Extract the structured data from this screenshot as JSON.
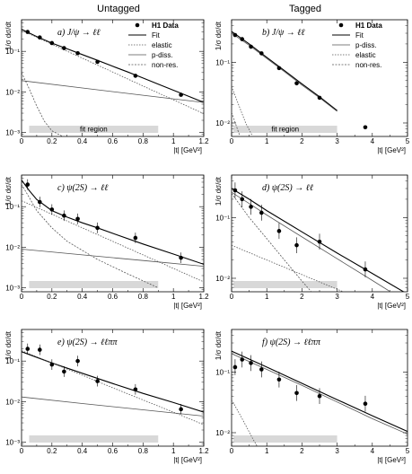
{
  "headers": {
    "left": "Untagged",
    "right": "Tagged"
  },
  "legend": {
    "untagged": [
      "H1 Data",
      "Fit",
      "elastic",
      "p-diss.",
      "non-res."
    ],
    "tagged": [
      "H1 Data",
      "Fit",
      "p-diss.",
      "elastic",
      "non-res."
    ]
  },
  "chart_data": [
    {
      "type": "scatter",
      "title": "a) J/ψ → ℓℓ",
      "column": "Untagged",
      "xlabel": "|t| [GeV²]",
      "ylabel": "1/σ dσ/dt",
      "xlim": [
        0,
        1.2
      ],
      "ylog": true,
      "xticks": [
        "0",
        "0.2",
        "0.4",
        "0.6",
        "0.8",
        "1",
        "1.2"
      ],
      "yticks": [
        "10⁻³",
        "10⁻²",
        "10⁻¹"
      ],
      "annotation": "fit region",
      "fit_region": [
        0.05,
        0.9
      ],
      "series": [
        {
          "name": "H1 Data",
          "x": [
            0.04,
            0.12,
            0.2,
            0.28,
            0.37,
            0.5,
            0.75,
            1.05
          ],
          "y": [
            0.3,
            0.22,
            0.16,
            0.12,
            0.09,
            0.055,
            0.025,
            0.0085
          ]
        },
        {
          "name": "Fit",
          "x": [
            0,
            0.1,
            0.2,
            0.3,
            0.4,
            0.5,
            0.6,
            0.7,
            0.8,
            0.9,
            1.0,
            1.1,
            1.2
          ],
          "y": [
            0.35,
            0.23,
            0.16,
            0.115,
            0.083,
            0.06,
            0.043,
            0.031,
            0.022,
            0.0155,
            0.011,
            0.0078,
            0.0055
          ]
        },
        {
          "name": "elastic",
          "x": [
            0,
            0.2,
            0.4,
            0.6,
            0.8,
            1.0,
            1.2
          ],
          "y": [
            0.33,
            0.15,
            0.068,
            0.031,
            0.014,
            0.0064,
            0.0029
          ]
        },
        {
          "name": "p-diss.",
          "x": [
            0,
            0.4,
            0.8,
            1.2
          ],
          "y": [
            0.019,
            0.0125,
            0.0083,
            0.0055
          ]
        },
        {
          "name": "non-res.",
          "x": [
            0,
            0.05,
            0.1,
            0.15,
            0.2,
            0.3
          ],
          "y": [
            0.03,
            0.012,
            0.0045,
            0.0019,
            0.0011,
            0.0007
          ]
        }
      ]
    },
    {
      "type": "scatter",
      "title": "b) J/ψ → ℓℓ",
      "column": "Tagged",
      "xlabel": "|t| [GeV²]",
      "ylabel": "1/σ dσ/dt",
      "xlim": [
        0,
        5
      ],
      "ylog": true,
      "xticks": [
        "0",
        "1",
        "2",
        "3",
        "4",
        "5"
      ],
      "yticks": [
        "10⁻²",
        "10⁻¹"
      ],
      "annotation": "fit region",
      "fit_region": [
        0.05,
        3.0
      ],
      "series": [
        {
          "name": "H1 Data",
          "x": [
            0.1,
            0.3,
            0.55,
            0.85,
            1.35,
            1.85,
            2.5,
            3.8
          ],
          "y": [
            0.28,
            0.24,
            0.18,
            0.14,
            0.08,
            0.045,
            0.026,
            0.0085
          ]
        },
        {
          "name": "Fit",
          "x": [
            0,
            0.5,
            1,
            1.5,
            2,
            2.5,
            3
          ],
          "y": [
            0.32,
            0.2,
            0.12,
            0.073,
            0.044,
            0.027,
            0.016
          ]
        },
        {
          "name": "p-diss.",
          "x": [
            0,
            0.5,
            1,
            1.5,
            2,
            2.5,
            3
          ],
          "y": [
            0.3,
            0.19,
            0.115,
            0.07,
            0.042,
            0.026,
            0.0155
          ]
        },
        {
          "name": "elastic",
          "x": [
            0,
            0.2,
            0.4,
            0.6,
            0.8,
            1.0,
            1.2
          ],
          "y": [
            0.04,
            0.02,
            0.01,
            0.006,
            0.0035,
            0.0022,
            0.0015
          ]
        },
        {
          "name": "non-res.",
          "x": [
            0,
            0.2,
            0.4,
            0.6,
            0.8,
            1.0
          ],
          "y": [
            0.015,
            0.007,
            0.0035,
            0.002,
            0.0013,
            0.0009
          ]
        }
      ]
    },
    {
      "type": "scatter",
      "title": "c) ψ(2S) → ℓℓ",
      "column": "Untagged",
      "xlabel": "|t| [GeV²]",
      "ylabel": "1/σ dσ/dt",
      "xlim": [
        0,
        1.2
      ],
      "ylog": true,
      "xticks": [
        "0",
        "0.2",
        "0.4",
        "0.6",
        "0.8",
        "1",
        "1.2"
      ],
      "yticks": [
        "10⁻³",
        "10⁻²",
        "10⁻¹"
      ],
      "fit_region": [
        0.05,
        0.9
      ],
      "series": [
        {
          "name": "H1 Data",
          "x": [
            0.04,
            0.12,
            0.2,
            0.28,
            0.37,
            0.5,
            0.75,
            1.05
          ],
          "y": [
            0.35,
            0.13,
            0.085,
            0.06,
            0.05,
            0.03,
            0.017,
            0.0055
          ]
        },
        {
          "name": "Fit",
          "x": [
            0,
            0.05,
            0.1,
            0.2,
            0.3,
            0.4,
            0.5,
            0.6,
            0.8,
            1.0,
            1.2
          ],
          "y": [
            0.45,
            0.25,
            0.15,
            0.08,
            0.055,
            0.04,
            0.03,
            0.022,
            0.012,
            0.0068,
            0.0038
          ]
        },
        {
          "name": "elastic",
          "x": [
            0,
            0.2,
            0.4,
            0.6,
            0.8,
            1.0,
            1.2
          ],
          "y": [
            0.14,
            0.065,
            0.03,
            0.014,
            0.0065,
            0.003,
            0.0014
          ]
        },
        {
          "name": "p-diss.",
          "x": [
            0,
            0.4,
            0.8,
            1.2
          ],
          "y": [
            0.009,
            0.0065,
            0.0047,
            0.0034
          ]
        },
        {
          "name": "non-res.",
          "x": [
            0,
            0.05,
            0.1,
            0.2,
            0.3,
            0.5,
            0.7,
            0.9
          ],
          "y": [
            0.35,
            0.17,
            0.08,
            0.03,
            0.014,
            0.005,
            0.0022,
            0.001
          ]
        }
      ]
    },
    {
      "type": "scatter",
      "title": "d) ψ(2S) → ℓℓ",
      "column": "Tagged",
      "xlabel": "|t| [GeV²]",
      "ylabel": "1/σ dσ/dt",
      "xlim": [
        0,
        5
      ],
      "ylog": true,
      "xticks": [
        "0",
        "1",
        "2",
        "3",
        "4",
        "5"
      ],
      "yticks": [
        "10⁻²",
        "10⁻¹"
      ],
      "fit_region": [
        0.05,
        3.0
      ],
      "series": [
        {
          "name": "H1 Data",
          "x": [
            0.1,
            0.3,
            0.55,
            0.85,
            1.35,
            1.85,
            2.5,
            3.8
          ],
          "y": [
            0.28,
            0.2,
            0.15,
            0.12,
            0.06,
            0.035,
            0.04,
            0.014
          ]
        },
        {
          "name": "Fit",
          "x": [
            0,
            0.5,
            1,
            2,
            3,
            4,
            5
          ],
          "y": [
            0.3,
            0.2,
            0.13,
            0.058,
            0.026,
            0.012,
            0.0055
          ]
        },
        {
          "name": "p-diss.",
          "x": [
            0,
            0.5,
            1,
            2,
            3,
            4,
            5
          ],
          "y": [
            0.26,
            0.17,
            0.11,
            0.048,
            0.021,
            0.0092,
            0.004
          ]
        },
        {
          "name": "elastic",
          "x": [
            0,
            1,
            2,
            3,
            4,
            5
          ],
          "y": [
            0.035,
            0.02,
            0.0115,
            0.0066,
            0.0038,
            0.0022
          ]
        },
        {
          "name": "non-res.",
          "x": [
            0,
            0.5,
            1,
            1.5,
            2,
            2.5,
            3
          ],
          "y": [
            0.25,
            0.1,
            0.045,
            0.02,
            0.009,
            0.0042,
            0.002
          ]
        }
      ]
    },
    {
      "type": "scatter",
      "title": "e) ψ(2S) → ℓℓππ",
      "column": "Untagged",
      "xlabel": "|t| [GeV²]",
      "ylabel": "1/σ dσ/dt",
      "xlim": [
        0,
        1.2
      ],
      "ylog": true,
      "xticks": [
        "0",
        "0.2",
        "0.4",
        "0.6",
        "0.8",
        "1",
        "1.2"
      ],
      "yticks": [
        "10⁻³",
        "10⁻²",
        "10⁻¹"
      ],
      "fit_region": [
        0.05,
        0.9
      ],
      "series": [
        {
          "name": "H1 Data",
          "x": [
            0.04,
            0.12,
            0.2,
            0.28,
            0.37,
            0.5,
            0.75,
            1.05
          ],
          "y": [
            0.2,
            0.19,
            0.082,
            0.055,
            0.1,
            0.032,
            0.02,
            0.0065
          ]
        },
        {
          "name": "Fit",
          "x": [
            0,
            0.2,
            0.4,
            0.6,
            0.8,
            1.0,
            1.2
          ],
          "y": [
            0.17,
            0.09,
            0.05,
            0.028,
            0.016,
            0.0095,
            0.0055
          ]
        },
        {
          "name": "elastic",
          "x": [
            0,
            0.2,
            0.4,
            0.6,
            0.8,
            1.0,
            1.2
          ],
          "y": [
            0.18,
            0.09,
            0.045,
            0.022,
            0.011,
            0.0055,
            0.0027
          ]
        },
        {
          "name": "p-diss.",
          "x": [
            0,
            0.4,
            0.8,
            1.2
          ],
          "y": [
            0.013,
            0.009,
            0.0063,
            0.0044
          ]
        }
      ]
    },
    {
      "type": "scatter",
      "title": "f) ψ(2S) → ℓℓππ",
      "column": "Tagged",
      "xlabel": "|t| [GeV²]",
      "ylabel": "1/σ dσ/dt",
      "xlim": [
        0,
        5
      ],
      "ylog": true,
      "xticks": [
        "0",
        "1",
        "2",
        "3",
        "4",
        "5"
      ],
      "yticks": [
        "10⁻²",
        "10⁻¹"
      ],
      "fit_region": [
        0.05,
        3.0
      ],
      "series": [
        {
          "name": "H1 Data",
          "x": [
            0.1,
            0.3,
            0.55,
            0.85,
            1.35,
            1.85,
            2.5,
            3.8
          ],
          "y": [
            0.12,
            0.16,
            0.14,
            0.11,
            0.075,
            0.045,
            0.04,
            0.03
          ]
        },
        {
          "name": "Fit",
          "x": [
            0,
            1,
            2,
            3,
            4,
            5
          ],
          "y": [
            0.22,
            0.12,
            0.065,
            0.035,
            0.019,
            0.0105
          ]
        },
        {
          "name": "p-diss.",
          "x": [
            0,
            1,
            2,
            3,
            4,
            5
          ],
          "y": [
            0.2,
            0.11,
            0.06,
            0.032,
            0.017,
            0.0095
          ]
        },
        {
          "name": "elastic",
          "x": [
            0,
            0.3,
            0.6,
            0.9,
            1.2
          ],
          "y": [
            0.035,
            0.017,
            0.008,
            0.004,
            0.002
          ]
        }
      ]
    }
  ]
}
